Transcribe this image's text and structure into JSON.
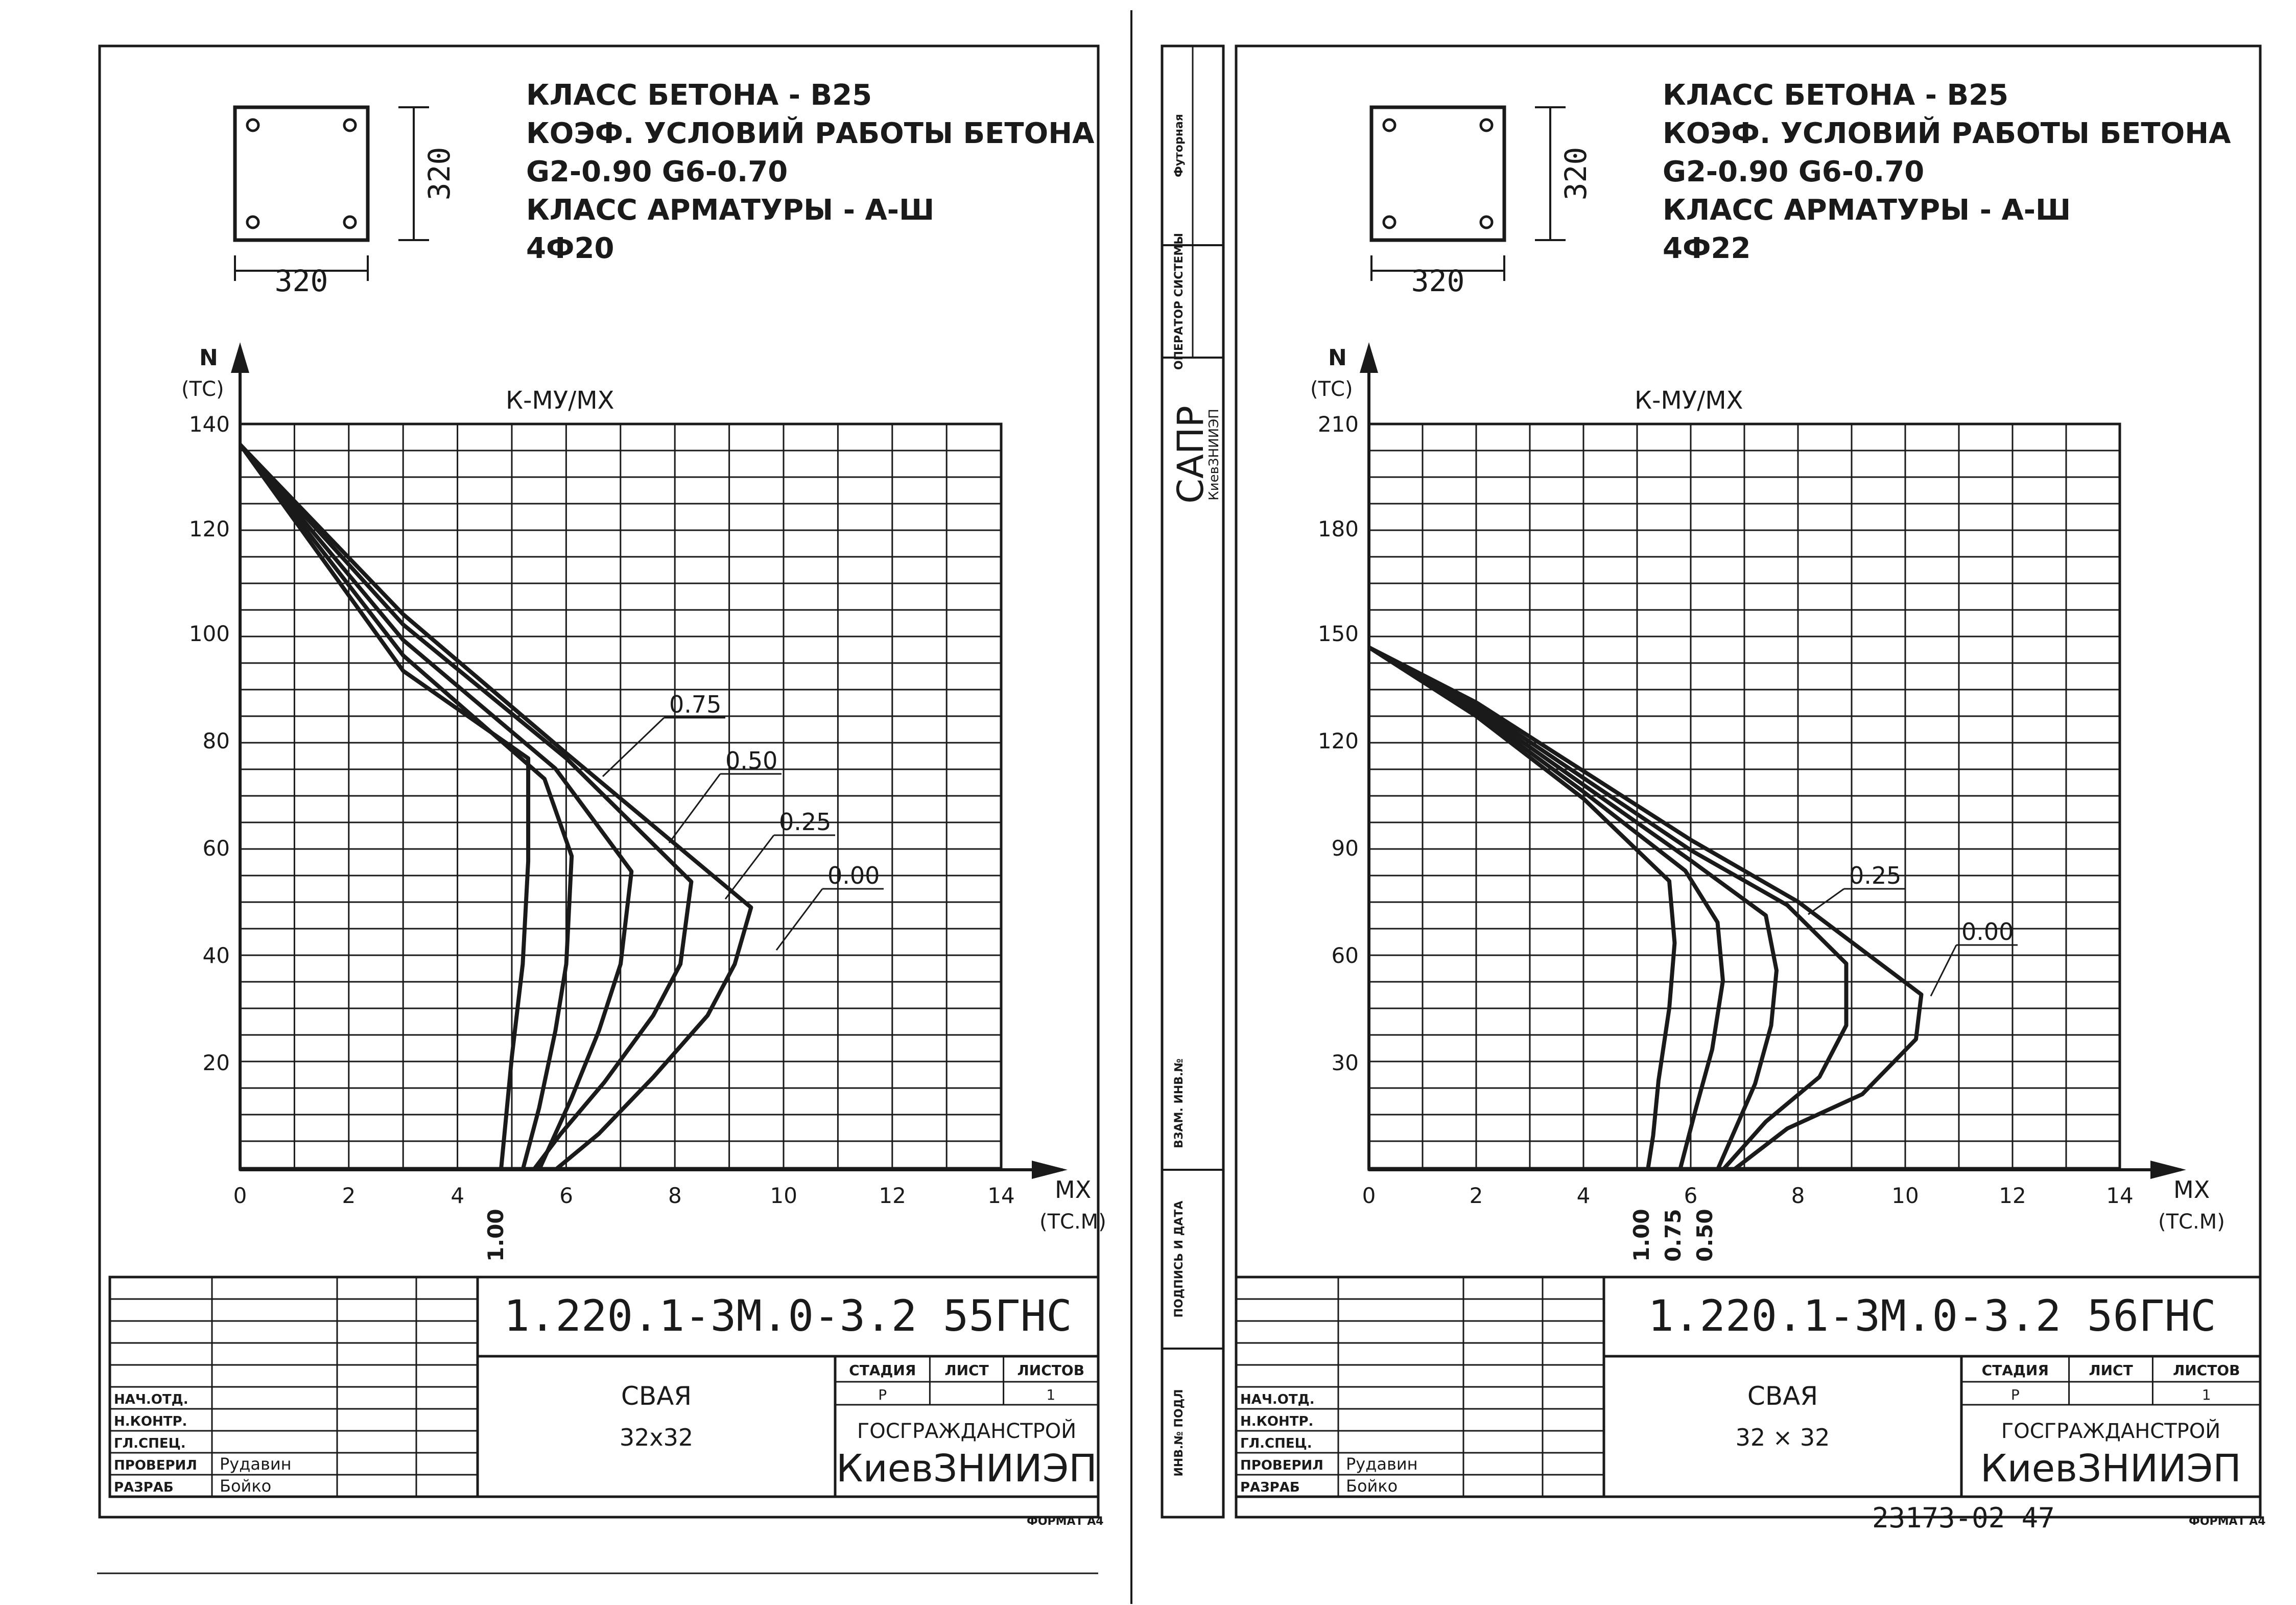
{
  "ink_color": "#1a1a1a",
  "paper_color": "#ffffff",
  "sheets": [
    {
      "section": {
        "width_label": "320",
        "height_label": "320"
      },
      "spec_lines": [
        "КЛАСС БЕТОНА - В25",
        "КОЭФ. УСЛОВИЙ РАБОТЫ БЕТОНА",
        "G2-0.90        G6-0.70",
        "КЛАСС АРМАТУРЫ - А-Ш",
        "4Ф20"
      ],
      "y_axis_name": "N",
      "y_axis_unit": "(ТС)",
      "x_axis_name": "MX",
      "x_axis_unit": "(ТС.М)",
      "curve_family_label": "К-МУ/МХ",
      "y_ticks": [
        "140",
        "120",
        "100",
        "80",
        "60",
        "40",
        "20"
      ],
      "x_ticks": [
        "0",
        "2",
        "4",
        "6",
        "8",
        "10",
        "12",
        "14"
      ],
      "curve_labels": [
        "0.75",
        "0.50",
        "0.25",
        "0.00"
      ],
      "bottom_labels": [
        "1.00"
      ],
      "title_block": {
        "code": "1.220.1-3М.0-3.2 55ГНС",
        "roles": [
          "НАЧ.ОТД.",
          "Н.КОНТР.",
          "ГЛ.СПЕЦ.",
          "ПРОВЕРИЛ",
          "РАЗРАБ"
        ],
        "names": [
          "",
          "",
          "",
          "Рудавин",
          "Бойко"
        ],
        "item_name": "СВАЯ",
        "item_size": "32х32",
        "col_headers": [
          "СТАДИЯ",
          "ЛИСТ",
          "ЛИСТОВ"
        ],
        "col_values": [
          "Р",
          "",
          "1"
        ],
        "org_line1": "ГОСГРАЖДАНСТРОЙ",
        "org_line2": "КиевЗНИИЭП",
        "format_label": "ФОРМАТ А4"
      }
    },
    {
      "section": {
        "width_label": "320",
        "height_label": "320"
      },
      "spec_lines": [
        "КЛАСС БЕТОНА - В25",
        "КОЭФ. УСЛОВИЙ РАБОТЫ БЕТОНА",
        "G2-0.90        G6-0.70",
        "КЛАСС АРМАТУРЫ - А-Ш",
        "4Ф22"
      ],
      "y_axis_name": "N",
      "y_axis_unit": "(ТС)",
      "x_axis_name": "MX",
      "x_axis_unit": "(ТС.М)",
      "curve_family_label": "К-МУ/МХ",
      "y_ticks": [
        "210",
        "180",
        "150",
        "120",
        "90",
        "60",
        "30"
      ],
      "x_ticks": [
        "0",
        "2",
        "4",
        "6",
        "8",
        "10",
        "12",
        "14"
      ],
      "curve_labels": [
        "0.25",
        "0.00"
      ],
      "bottom_labels": [
        "1.00",
        "0.75",
        "0.50"
      ],
      "title_block": {
        "code": "1.220.1-3М.0-3.2 56ГНС",
        "roles": [
          "НАЧ.ОТД.",
          "Н.КОНТР.",
          "ГЛ.СПЕЦ.",
          "ПРОВЕРИЛ",
          "РАЗРАБ"
        ],
        "names": [
          "",
          "",
          "",
          "Рудавин",
          "Бойко"
        ],
        "item_name": "СВАЯ",
        "item_size": "32 × 32",
        "col_headers": [
          "СТАДИЯ",
          "ЛИСТ",
          "ЛИСТОВ"
        ],
        "col_values": [
          "Р",
          "",
          "1"
        ],
        "org_line1": "ГОСГРАЖДАНСТРОЙ",
        "org_line2": "КиевЗНИИЭП",
        "format_label": "ФОРМАТ А4",
        "archive_number": "23173-02 47"
      }
    }
  ],
  "side_stamp": {
    "cells": [
      "Футорная",
      "ОПЕРАТОР СИСТЕМЫ",
      "ВЗАМ. ИНВ.№",
      "ПОДПИСЬ И ДАТА",
      "ИНВ.№ ПОДЛ"
    ],
    "logo_main": "САПР",
    "logo_sub": "КиевЗНИИЭП"
  },
  "chart_data": [
    {
      "type": "line",
      "title": "К-МУ/МХ",
      "xlabel": "MX (ТС.М)",
      "ylabel": "N (ТС)",
      "xlim": [
        0,
        14
      ],
      "ylim": [
        0,
        145
      ],
      "grid": true,
      "series": [
        {
          "name": "0.00",
          "points": [
            [
              0,
              141
            ],
            [
              3,
              108
            ],
            [
              6,
              81
            ],
            [
              9.4,
              51
            ],
            [
              9.1,
              40
            ],
            [
              8.6,
              30
            ],
            [
              7.6,
              18
            ],
            [
              6.6,
              7
            ],
            [
              5.8,
              0
            ]
          ]
        },
        {
          "name": "0.25",
          "points": [
            [
              0,
              141
            ],
            [
              3,
              106
            ],
            [
              6,
              80
            ],
            [
              8.3,
              56
            ],
            [
              8.1,
              40
            ],
            [
              7.6,
              30
            ],
            [
              6.7,
              17
            ],
            [
              5.9,
              7
            ],
            [
              5.4,
              0
            ]
          ]
        },
        {
          "name": "0.50",
          "points": [
            [
              0,
              141
            ],
            [
              3,
              103
            ],
            [
              5.8,
              78
            ],
            [
              7.2,
              58
            ],
            [
              7.0,
              40
            ],
            [
              6.6,
              27
            ],
            [
              6.1,
              14
            ],
            [
              5.5,
              0
            ]
          ]
        },
        {
          "name": "0.75",
          "points": [
            [
              0,
              141
            ],
            [
              3,
              100
            ],
            [
              5.6,
              76
            ],
            [
              6.1,
              61
            ],
            [
              6.0,
              40
            ],
            [
              5.8,
              27
            ],
            [
              5.5,
              12
            ],
            [
              5.2,
              0
            ]
          ]
        },
        {
          "name": "1.00",
          "points": [
            [
              0,
              141
            ],
            [
              3,
              97
            ],
            [
              5.3,
              80
            ],
            [
              5.3,
              60
            ],
            [
              5.2,
              40
            ],
            [
              5.0,
              22
            ],
            [
              4.8,
              0
            ]
          ]
        }
      ]
    },
    {
      "type": "line",
      "title": "К-МУ/МХ",
      "xlabel": "MX (ТС.М)",
      "ylabel": "N (ТС)",
      "xlim": [
        0,
        14
      ],
      "ylim": [
        0,
        217
      ],
      "grid": true,
      "series": [
        {
          "name": "0.00",
          "points": [
            [
              0,
              152
            ],
            [
              2,
              136
            ],
            [
              4,
              116
            ],
            [
              6,
              96
            ],
            [
              8,
              78
            ],
            [
              10.3,
              51
            ],
            [
              10.2,
              38
            ],
            [
              9.2,
              22
            ],
            [
              7.8,
              12
            ],
            [
              6.8,
              0
            ]
          ]
        },
        {
          "name": "0.25",
          "points": [
            [
              0,
              152
            ],
            [
              2,
              135
            ],
            [
              4,
              114
            ],
            [
              6,
              93
            ],
            [
              7.8,
              77
            ],
            [
              8.9,
              60
            ],
            [
              8.9,
              42
            ],
            [
              8.4,
              27
            ],
            [
              7.4,
              14
            ],
            [
              6.6,
              0
            ]
          ]
        },
        {
          "name": "0.50",
          "points": [
            [
              0,
              152
            ],
            [
              2,
              134
            ],
            [
              4,
              112
            ],
            [
              6,
              90
            ],
            [
              7.4,
              74
            ],
            [
              7.6,
              58
            ],
            [
              7.5,
              42
            ],
            [
              7.2,
              25
            ],
            [
              6.5,
              0
            ]
          ]
        },
        {
          "name": "0.75",
          "points": [
            [
              0,
              152
            ],
            [
              2,
              133
            ],
            [
              4,
              110
            ],
            [
              5.9,
              87
            ],
            [
              6.5,
              72
            ],
            [
              6.6,
              55
            ],
            [
              6.4,
              35
            ],
            [
              6.1,
              18
            ],
            [
              5.8,
              0
            ]
          ]
        },
        {
          "name": "1.00",
          "points": [
            [
              0,
              152
            ],
            [
              2,
              132
            ],
            [
              4,
              108
            ],
            [
              5.6,
              84
            ],
            [
              5.7,
              66
            ],
            [
              5.6,
              47
            ],
            [
              5.4,
              26
            ],
            [
              5.3,
              10
            ],
            [
              5.2,
              0
            ]
          ]
        }
      ]
    }
  ]
}
